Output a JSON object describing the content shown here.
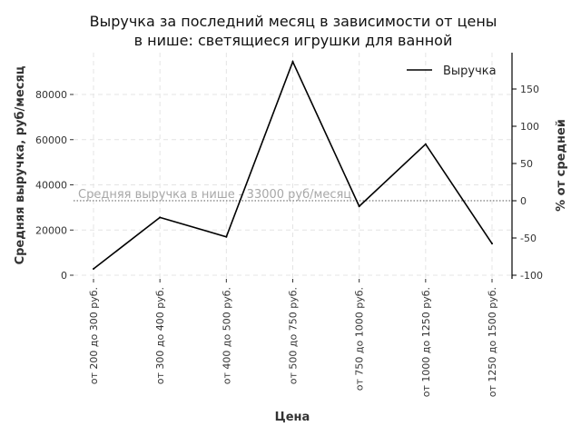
{
  "chart_data": {
    "type": "line",
    "title_line1": "Выручка за последний месяц в зависимости от цены",
    "title_line2": "в нише: светящиеся игрушки для ванной",
    "xlabel": "Цена",
    "ylabel": "Средняя выручка, руб/месяц",
    "ylabel_right": "% от средней",
    "categories": [
      "от 200 до 300 руб.",
      "от 300 до 400 руб.",
      "от 400 до 500 руб.",
      "от 500 до 750 руб.",
      "от 750 до 1000 руб.",
      "от 1000 до 1250 руб.",
      "от 1250 до 1500 руб."
    ],
    "series": [
      {
        "name": "Выручка",
        "color": "#000000",
        "values": [
          2800,
          25600,
          17000,
          94500,
          30500,
          58000,
          14000
        ]
      }
    ],
    "ylim": [
      -2000,
      98000
    ],
    "ylim_right": [
      -100,
      200
    ],
    "yticks": [
      0,
      20000,
      40000,
      60000,
      80000
    ],
    "yticks_right": [
      -100,
      -50,
      0,
      50,
      100,
      150
    ],
    "mean_line": {
      "value": 33000,
      "label": "Средняя выручка в нише - 33000 руб/месяц",
      "color": "#999999"
    },
    "legend_position": "top-right",
    "grid": true
  }
}
